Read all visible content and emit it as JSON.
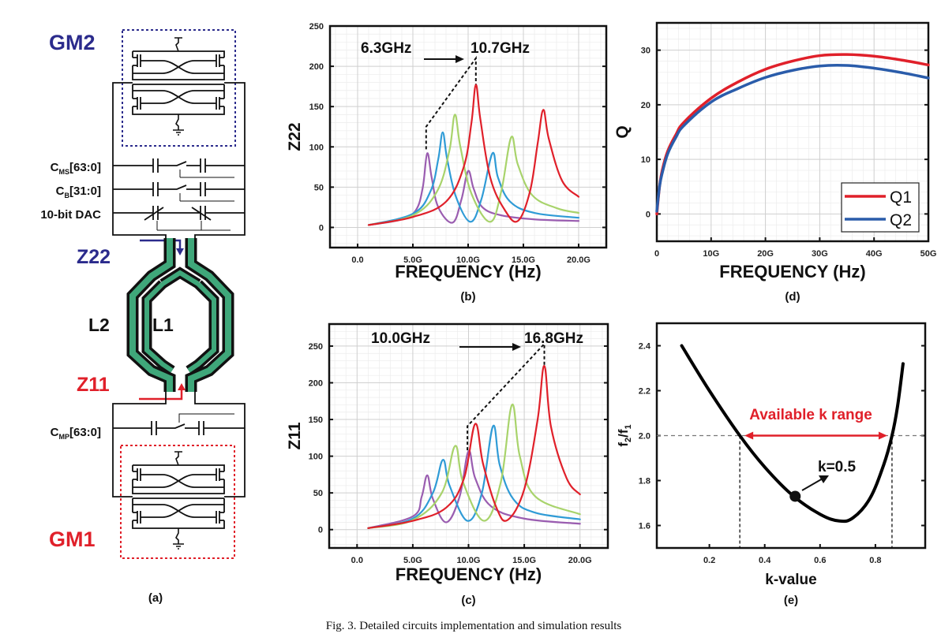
{
  "figure": {
    "caption": "Fig. 3. Detailed circuits implementation and simulation results"
  },
  "circuit": {
    "panel_label": "(a)",
    "gm2": "GM2",
    "gm1": "GM1",
    "z22": "Z22",
    "z11": "Z11",
    "l2": "L2",
    "l1": "L1",
    "cms": {
      "base": "C",
      "sub": "MS",
      "range": "[63:0]"
    },
    "cb": {
      "base": "C",
      "sub": "B",
      "range": "[31:0]"
    },
    "dac": "10-bit DAC",
    "cmp": {
      "base": "C",
      "sub": "MP",
      "range": "[63:0]"
    },
    "colors": {
      "gm2": "#2b2b8c",
      "gm1": "#e0202a",
      "inductor": "#3fa77a"
    }
  },
  "chart_data": [
    {
      "panel_label": "(b)",
      "type": "line",
      "xlabel": "FREQUENCY (Hz)",
      "ylabel": "Z22",
      "xlim": [
        -2500000000.0,
        22500000000.0
      ],
      "ylim": [
        -25,
        250
      ],
      "xticks": [
        0,
        5000000000.0,
        10000000000.0,
        15000000000.0,
        20000000000.0
      ],
      "xtick_labels": [
        "0.0",
        "5.0G",
        "10.0G",
        "15.0G",
        "20.0G"
      ],
      "yticks": [
        0,
        50,
        100,
        150,
        200,
        250
      ],
      "ytick_labels": [
        "0",
        "50",
        "100",
        "150",
        "200",
        "250"
      ],
      "grid": true,
      "series": [
        {
          "color": "#9a5db0",
          "points": [
            [
              1000000000.0,
              3
            ],
            [
              4000000000.0,
              10
            ],
            [
              5300000000.0,
              22
            ],
            [
              5900000000.0,
              50
            ],
            [
              6300000000.0,
              92
            ],
            [
              6700000000.0,
              62
            ],
            [
              7300000000.0,
              25
            ],
            [
              8600000000.0,
              6
            ],
            [
              9400000000.0,
              35
            ],
            [
              10000000000.0,
              70
            ],
            [
              10500000000.0,
              48
            ],
            [
              11300000000.0,
              25
            ],
            [
              13000000000.0,
              15
            ],
            [
              16000000000.0,
              10
            ],
            [
              20000000000.0,
              8
            ]
          ]
        },
        {
          "color": "#2f9bd6",
          "points": [
            [
              1000000000.0,
              3
            ],
            [
              5000000000.0,
              17
            ],
            [
              6600000000.0,
              45
            ],
            [
              7300000000.0,
              85
            ],
            [
              7700000000.0,
              118
            ],
            [
              8100000000.0,
              85
            ],
            [
              8900000000.0,
              38
            ],
            [
              10200000000.0,
              7
            ],
            [
              11200000000.0,
              35
            ],
            [
              12200000000.0,
              92
            ],
            [
              12700000000.0,
              62
            ],
            [
              13800000000.0,
              32
            ],
            [
              16000000000.0,
              18
            ],
            [
              20000000000.0,
              12
            ]
          ]
        },
        {
          "color": "#a8d36b",
          "points": [
            [
              1000000000.0,
              3
            ],
            [
              5000000000.0,
              15
            ],
            [
              7200000000.0,
              45
            ],
            [
              8300000000.0,
              95
            ],
            [
              8800000000.0,
              140
            ],
            [
              9300000000.0,
              100
            ],
            [
              10300000000.0,
              42
            ],
            [
              12000000000.0,
              7
            ],
            [
              13000000000.0,
              45
            ],
            [
              13900000000.0,
              112
            ],
            [
              14500000000.0,
              78
            ],
            [
              15800000000.0,
              40
            ],
            [
              18000000000.0,
              24
            ],
            [
              20000000000.0,
              18
            ]
          ]
        },
        {
          "color": "#e0202a",
          "points": [
            [
              1000000000.0,
              3
            ],
            [
              5000000000.0,
              13
            ],
            [
              8000000000.0,
              32
            ],
            [
              9600000000.0,
              75
            ],
            [
              10300000000.0,
              130
            ],
            [
              10700000000.0,
              177
            ],
            [
              11100000000.0,
              135
            ],
            [
              12000000000.0,
              62
            ],
            [
              13300000000.0,
              22
            ],
            [
              14500000000.0,
              8
            ],
            [
              15600000000.0,
              45
            ],
            [
              16300000000.0,
              105
            ],
            [
              16800000000.0,
              146
            ],
            [
              17300000000.0,
              110
            ],
            [
              18500000000.0,
              58
            ],
            [
              20000000000.0,
              38
            ]
          ]
        }
      ],
      "annotations": [
        {
          "text": "6.3GHz"
        },
        {
          "text": "10.7GHz"
        }
      ],
      "guide_path": [
        [
          6200000000.0,
          97
        ],
        [
          6200000000.0,
          125
        ],
        [
          10700000000.0,
          210
        ],
        [
          10700000000.0,
          178
        ]
      ]
    },
    {
      "panel_label": "(c)",
      "type": "line",
      "xlabel": "FREQUENCY (Hz)",
      "ylabel": "Z11",
      "xlim": [
        -2500000000.0,
        22500000000.0
      ],
      "ylim": [
        -25,
        280
      ],
      "xticks": [
        0,
        5000000000.0,
        10000000000.0,
        15000000000.0,
        20000000000.0
      ],
      "xtick_labels": [
        "0.0",
        "5.0G",
        "10.0G",
        "15.0G",
        "20.0G"
      ],
      "yticks": [
        0,
        50,
        100,
        150,
        200,
        250
      ],
      "ytick_labels": [
        "0",
        "50",
        "100",
        "150",
        "200",
        "250"
      ],
      "grid": true,
      "series": [
        {
          "color": "#9a5db0",
          "points": [
            [
              1000000000.0,
              2
            ],
            [
              5000000000.0,
              18
            ],
            [
              5800000000.0,
              45
            ],
            [
              6300000000.0,
              74
            ],
            [
              6800000000.0,
              42
            ],
            [
              8000000000.0,
              10
            ],
            [
              9200000000.0,
              45
            ],
            [
              10000000000.0,
              107
            ],
            [
              10600000000.0,
              70
            ],
            [
              12000000000.0,
              32
            ],
            [
              15000000000.0,
              15
            ],
            [
              20000000000.0,
              8
            ]
          ]
        },
        {
          "color": "#2f9bd6",
          "points": [
            [
              1000000000.0,
              2
            ],
            [
              5000000000.0,
              15
            ],
            [
              6800000000.0,
              50
            ],
            [
              7700000000.0,
              95
            ],
            [
              8300000000.0,
              60
            ],
            [
              9900000000.0,
              12
            ],
            [
              11200000000.0,
              50
            ],
            [
              12200000000.0,
              141
            ],
            [
              12800000000.0,
              88
            ],
            [
              14000000000.0,
              42
            ],
            [
              16000000000.0,
              23
            ],
            [
              20000000000.0,
              14
            ]
          ]
        },
        {
          "color": "#a8d36b",
          "points": [
            [
              1000000000.0,
              2
            ],
            [
              5000000000.0,
              13
            ],
            [
              7600000000.0,
              50
            ],
            [
              8800000000.0,
              114
            ],
            [
              9500000000.0,
              65
            ],
            [
              11400000000.0,
              12
            ],
            [
              12900000000.0,
              65
            ],
            [
              13900000000.0,
              170
            ],
            [
              14600000000.0,
              100
            ],
            [
              16000000000.0,
              45
            ],
            [
              20000000000.0,
              21
            ]
          ]
        },
        {
          "color": "#e0202a",
          "points": [
            [
              1000000000.0,
              2
            ],
            [
              5000000000.0,
              12
            ],
            [
              8000000000.0,
              30
            ],
            [
              9600000000.0,
              70
            ],
            [
              10600000000.0,
              144
            ],
            [
              11300000000.0,
              90
            ],
            [
              12500000000.0,
              30
            ],
            [
              13500000000.0,
              13
            ],
            [
              15000000000.0,
              55
            ],
            [
              16200000000.0,
              150
            ],
            [
              16800000000.0,
              223
            ],
            [
              17400000000.0,
              140
            ],
            [
              18800000000.0,
              70
            ],
            [
              20000000000.0,
              48
            ]
          ]
        }
      ],
      "annotations": [
        {
          "text": "10.0GHz"
        },
        {
          "text": "16.8GHz"
        }
      ],
      "guide_path": [
        [
          9900000000.0,
          108
        ],
        [
          9900000000.0,
          141
        ],
        [
          16800000000.0,
          253
        ],
        [
          16800000000.0,
          224
        ]
      ]
    },
    {
      "panel_label": "(d)",
      "type": "line",
      "xlabel": "FREQUENCY (Hz)",
      "ylabel": "Q",
      "xlim": [
        0,
        50000000000.0
      ],
      "ylim": [
        -5,
        35
      ],
      "xticks": [
        0,
        10000000000.0,
        20000000000.0,
        30000000000.0,
        40000000000.0,
        50000000000.0
      ],
      "xtick_labels": [
        "0",
        "10G",
        "20G",
        "30G",
        "40G",
        "50G"
      ],
      "yticks": [
        0,
        10,
        20,
        30
      ],
      "ytick_labels": [
        "0",
        "10",
        "20",
        "30"
      ],
      "grid": true,
      "legend": "bottom-right",
      "series": [
        {
          "name": "Q1",
          "color": "#e0202a",
          "points": [
            [
              0,
              0
            ],
            [
              500000000.0,
              5
            ],
            [
              1000000000.0,
              8
            ],
            [
              2000000000.0,
              11.5
            ],
            [
              3500000000.0,
              14.5
            ],
            [
              5000000000.0,
              16.8
            ],
            [
              10000000000.0,
              21.2
            ],
            [
              15000000000.0,
              24.2
            ],
            [
              20000000000.0,
              26.5
            ],
            [
              25000000000.0,
              28
            ],
            [
              30000000000.0,
              29
            ],
            [
              35000000000.0,
              29.2
            ],
            [
              40000000000.0,
              28.9
            ],
            [
              45000000000.0,
              28.2
            ],
            [
              50000000000.0,
              27.3
            ]
          ]
        },
        {
          "name": "Q2",
          "color": "#2a5caa",
          "points": [
            [
              0,
              0.5
            ],
            [
              500000000.0,
              5
            ],
            [
              1000000000.0,
              7.5
            ],
            [
              2000000000.0,
              11
            ],
            [
              3500000000.0,
              14
            ],
            [
              5000000000.0,
              16.2
            ],
            [
              10000000000.0,
              20.5
            ],
            [
              15000000000.0,
              23
            ],
            [
              20000000000.0,
              25
            ],
            [
              25000000000.0,
              26.3
            ],
            [
              30000000000.0,
              27.1
            ],
            [
              35000000000.0,
              27.2
            ],
            [
              40000000000.0,
              26.7
            ],
            [
              45000000000.0,
              25.9
            ],
            [
              50000000000.0,
              24.9
            ]
          ]
        }
      ]
    },
    {
      "panel_label": "(e)",
      "type": "line",
      "xlabel": "k-value",
      "ylabel_parts": [
        "f",
        "2",
        "/f",
        "1"
      ],
      "xlim": [
        0.01,
        0.98
      ],
      "ylim": [
        1.5,
        2.5
      ],
      "xticks": [
        0.2,
        0.4,
        0.6,
        0.8
      ],
      "xtick_labels": [
        "0.2",
        "0.4",
        "0.6",
        "0.8"
      ],
      "yticks": [
        1.6,
        1.8,
        2.0,
        2.2,
        2.4
      ],
      "ytick_labels": [
        "1.6",
        "1.8",
        "2.0",
        "2.2",
        "2.4"
      ],
      "grid": false,
      "series": [
        {
          "color": "#000000",
          "points": [
            [
              0.1,
              2.4
            ],
            [
              0.2,
              2.2
            ],
            [
              0.31,
              2.0
            ],
            [
              0.4,
              1.86
            ],
            [
              0.5,
              1.735
            ],
            [
              0.6,
              1.65
            ],
            [
              0.67,
              1.62
            ],
            [
              0.72,
              1.635
            ],
            [
              0.78,
              1.72
            ],
            [
              0.83,
              1.87
            ],
            [
              0.86,
              2.0
            ],
            [
              0.88,
              2.13
            ],
            [
              0.9,
              2.32
            ]
          ]
        }
      ],
      "threshold_y": 2.0,
      "range_bounds": [
        0.31,
        0.86
      ],
      "marker": {
        "x": 0.51,
        "y": 1.73,
        "label": "k=0.5"
      },
      "range_label": "Available k range",
      "range_color": "#e0202a"
    }
  ]
}
